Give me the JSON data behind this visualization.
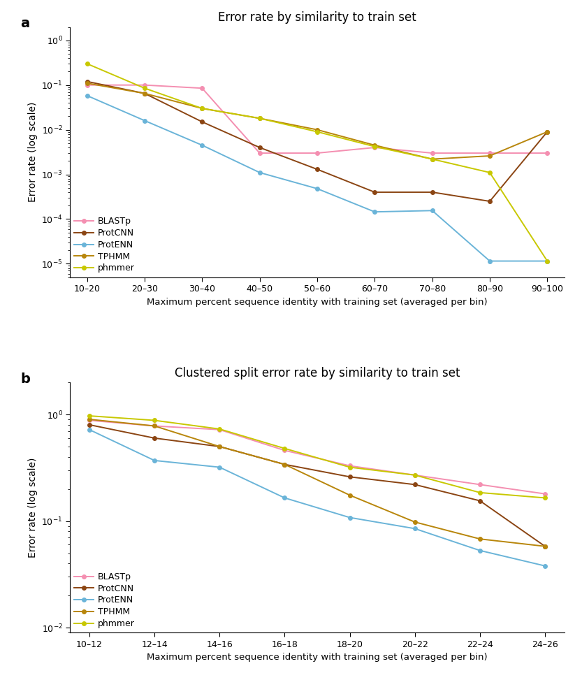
{
  "panel_a": {
    "title": "Error rate by similarity to train set",
    "xlabel": "Maximum percent sequence identity with training set (averaged per bin)",
    "ylabel": "Error rate (log scale)",
    "xtick_labels": [
      "10–20",
      "20–30",
      "30–40",
      "40–50",
      "50–60",
      "60–70",
      "70–80",
      "80–90",
      "90–100"
    ],
    "ylim": [
      5e-06,
      2.0
    ],
    "series": {
      "BLASTp": {
        "color": "#f48fb1",
        "values": [
          0.1,
          0.1,
          0.085,
          0.003,
          0.003,
          0.004,
          0.003,
          0.003,
          0.003
        ]
      },
      "ProtCNN": {
        "color": "#8b4513",
        "values": [
          0.12,
          0.065,
          0.015,
          0.004,
          0.0013,
          0.0004,
          0.0004,
          0.00025,
          0.009
        ]
      },
      "ProtENN": {
        "color": "#6ab4d8",
        "values": [
          0.058,
          0.016,
          0.0045,
          0.0011,
          0.00048,
          0.000145,
          0.000155,
          1.15e-05,
          1.15e-05
        ]
      },
      "TPHMM": {
        "color": "#b8860b",
        "values": [
          0.11,
          0.065,
          0.03,
          0.018,
          0.01,
          0.0045,
          0.0022,
          0.0026,
          0.009
        ]
      },
      "phmmer": {
        "color": "#c8c800",
        "values": [
          0.3,
          0.085,
          0.03,
          0.018,
          0.009,
          0.0042,
          0.0022,
          0.0011,
          1.15e-05
        ]
      }
    }
  },
  "panel_b": {
    "title": "Clustered split error rate by similarity to train set",
    "xlabel": "Maximum percent sequence identity with training set (averaged per bin)",
    "ylabel": "Error rate (log scale)",
    "xtick_labels": [
      "10–12",
      "12–14",
      "14–16",
      "16–18",
      "18–20",
      "20–22",
      "22–24",
      "24–26"
    ],
    "ylim": [
      0.009,
      2.0
    ],
    "series": {
      "BLASTp": {
        "color": "#f48fb1",
        "values": [
          0.88,
          0.78,
          0.72,
          0.46,
          0.33,
          0.27,
          0.22,
          0.18
        ]
      },
      "ProtCNN": {
        "color": "#8b4513",
        "values": [
          0.8,
          0.6,
          0.5,
          0.34,
          0.26,
          0.22,
          0.155,
          0.058
        ]
      },
      "ProtENN": {
        "color": "#6ab4d8",
        "values": [
          0.72,
          0.37,
          0.32,
          0.165,
          0.108,
          0.085,
          0.053,
          0.038
        ]
      },
      "TPHMM": {
        "color": "#b8860b",
        "values": [
          0.9,
          0.78,
          0.5,
          0.34,
          0.175,
          0.098,
          0.068,
          0.058
        ]
      },
      "phmmer": {
        "color": "#c8c800",
        "values": [
          0.97,
          0.88,
          0.73,
          0.48,
          0.32,
          0.27,
          0.185,
          0.165
        ]
      }
    }
  },
  "legend_order": [
    "BLASTp",
    "ProtCNN",
    "ProtENN",
    "TPHMM",
    "phmmer"
  ],
  "background_color": "#ffffff",
  "label_a": "a",
  "label_b": "b",
  "figsize": [
    8.33,
    9.63
  ],
  "dpi": 100
}
